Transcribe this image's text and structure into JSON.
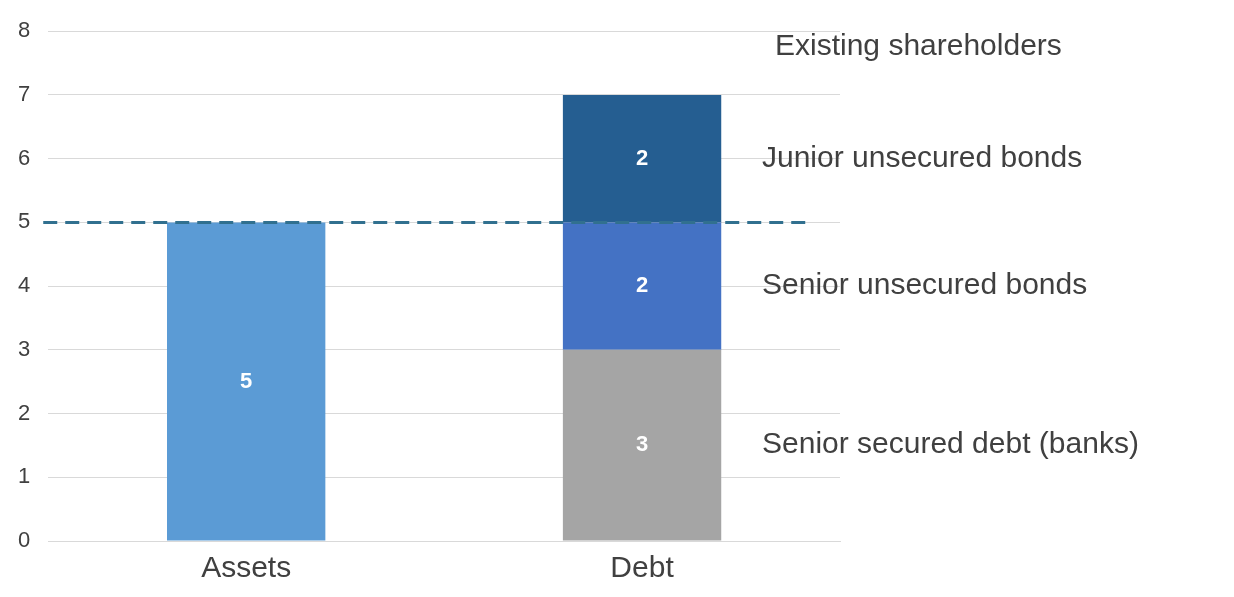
{
  "chart_data": {
    "type": "bar",
    "stacked": true,
    "categories": [
      "Assets",
      "Debt"
    ],
    "series": [
      {
        "color": "#5b9bd5",
        "values": [
          5,
          null
        ]
      },
      {
        "name": "Senior secured debt (banks)",
        "color": "#a5a5a5",
        "values": [
          null,
          3
        ]
      },
      {
        "name": "Senior unsecured bonds",
        "color": "#4472c4",
        "values": [
          null,
          2
        ]
      },
      {
        "name": "Junior unsecured bonds",
        "color": "#255e91",
        "values": [
          null,
          2
        ]
      }
    ],
    "ylim": [
      0,
      8
    ],
    "yticks": [
      0,
      1,
      2,
      3,
      4,
      5,
      6,
      7,
      8
    ],
    "grid": "y",
    "legend": false,
    "data_labels": true,
    "ref_lines": [
      {
        "axis": "y",
        "value": 5,
        "color": "#31708f",
        "line_style": "dashed"
      }
    ],
    "annotations": [
      "Existing shareholders"
    ]
  }
}
